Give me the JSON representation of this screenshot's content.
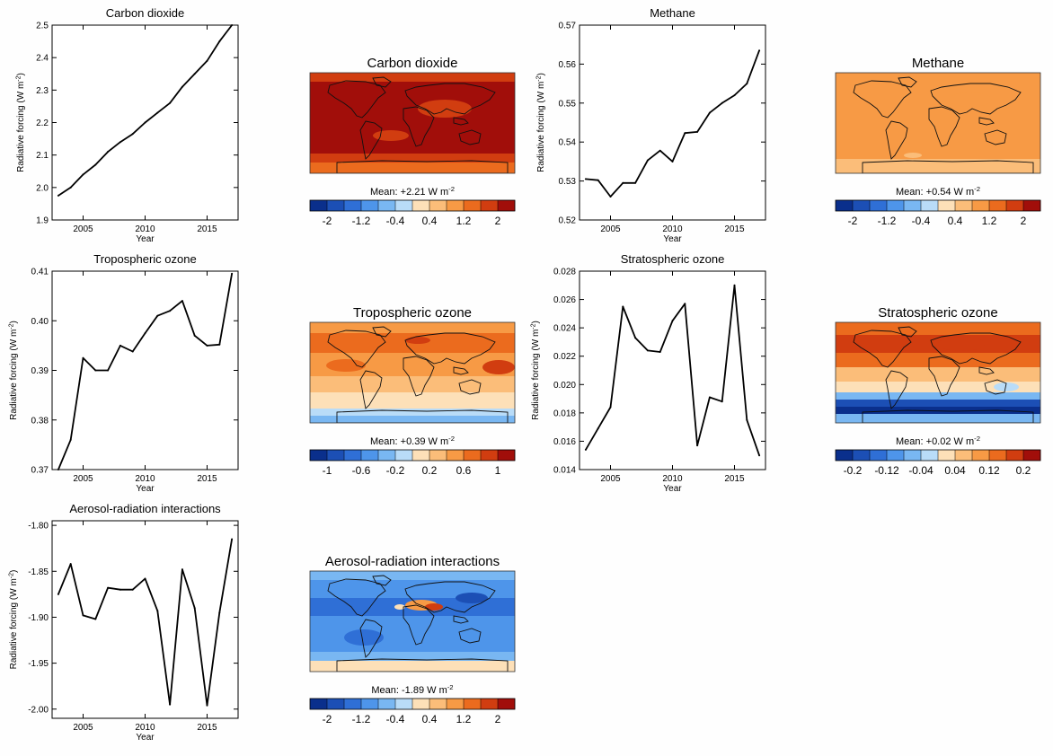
{
  "chart_data": [
    {
      "type": "line",
      "title": "Carbon dioxide",
      "xlabel": "Year",
      "ylabel": "Radiative forcing (W m",
      "ylabel_sup": "-2",
      "ylabel_close": ")",
      "xlim": [
        2002.5,
        2017.5
      ],
      "ylim": [
        1.9,
        2.5
      ],
      "xticks": [
        2005,
        2010,
        2015
      ],
      "yticks": [
        1.9,
        2.0,
        2.1,
        2.2,
        2.3,
        2.4,
        2.5
      ],
      "ytick_labels": [
        "1.9",
        "2.0",
        "2.1",
        "2.2",
        "2.3",
        "2.4",
        "2.5"
      ],
      "x": [
        2003,
        2004,
        2005,
        2006,
        2007,
        2008,
        2009,
        2010,
        2011,
        2012,
        2013,
        2014,
        2015,
        2016,
        2017
      ],
      "values": [
        1.975,
        2.0,
        2.04,
        2.07,
        2.11,
        2.14,
        2.165,
        2.2,
        2.23,
        2.26,
        2.31,
        2.35,
        2.39,
        2.45,
        2.5
      ]
    },
    {
      "type": "line",
      "title": "Methane",
      "xlabel": "Year",
      "ylabel": "Radiative forcing (W m",
      "ylabel_sup": "-2",
      "ylabel_close": ")",
      "xlim": [
        2002.5,
        2017.5
      ],
      "ylim": [
        0.52,
        0.57
      ],
      "xticks": [
        2005,
        2010,
        2015
      ],
      "yticks": [
        0.52,
        0.53,
        0.54,
        0.55,
        0.56,
        0.57
      ],
      "ytick_labels": [
        "0.52",
        "0.53",
        "0.54",
        "0.55",
        "0.56",
        "0.57"
      ],
      "x": [
        2003,
        2004,
        2005,
        2006,
        2007,
        2008,
        2009,
        2010,
        2011,
        2012,
        2013,
        2014,
        2015,
        2016,
        2017
      ],
      "values": [
        0.5305,
        0.5302,
        0.526,
        0.5295,
        0.5295,
        0.5353,
        0.5378,
        0.535,
        0.5423,
        0.5426,
        0.5475,
        0.55,
        0.552,
        0.555,
        0.5635
      ]
    },
    {
      "type": "line",
      "title": "Tropospheric ozone",
      "xlabel": "Year",
      "ylabel": "Radiative forcing (W m",
      "ylabel_sup": "-2",
      "ylabel_close": ")",
      "xlim": [
        2002.5,
        2017.5
      ],
      "ylim": [
        0.37,
        0.41
      ],
      "xticks": [
        2005,
        2010,
        2015
      ],
      "yticks": [
        0.37,
        0.38,
        0.39,
        0.4,
        0.41
      ],
      "ytick_labels": [
        "0.37",
        "0.38",
        "0.39",
        "0.40",
        "0.41"
      ],
      "x": [
        2003,
        2004,
        2005,
        2006,
        2007,
        2008,
        2009,
        2010,
        2011,
        2012,
        2013,
        2014,
        2015,
        2016,
        2017
      ],
      "values": [
        0.37,
        0.376,
        0.3925,
        0.39,
        0.39,
        0.395,
        0.3938,
        0.3975,
        0.401,
        0.402,
        0.404,
        0.397,
        0.395,
        0.3952,
        0.4095
      ]
    },
    {
      "type": "line",
      "title": "Stratospheric ozone",
      "xlabel": "Year",
      "ylabel": "Radiative forcing (W m",
      "ylabel_sup": "-2",
      "ylabel_close": ")",
      "xlim": [
        2002.5,
        2017.5
      ],
      "ylim": [
        0.014,
        0.028
      ],
      "xticks": [
        2005,
        2010,
        2015
      ],
      "yticks": [
        0.014,
        0.016,
        0.018,
        0.02,
        0.022,
        0.024,
        0.026,
        0.028
      ],
      "ytick_labels": [
        "0.014",
        "0.016",
        "0.018",
        "0.020",
        "0.022",
        "0.024",
        "0.026",
        "0.028"
      ],
      "x": [
        2003,
        2004,
        2005,
        2006,
        2007,
        2008,
        2009,
        2010,
        2011,
        2012,
        2013,
        2014,
        2015,
        2016,
        2017
      ],
      "values": [
        0.0154,
        0.0169,
        0.0184,
        0.0255,
        0.0233,
        0.0224,
        0.0223,
        0.0245,
        0.0257,
        0.0157,
        0.0191,
        0.0188,
        0.027,
        0.0175,
        0.015
      ]
    },
    {
      "type": "line",
      "title": "Aerosol-radiation interactions",
      "xlabel": "Year",
      "ylabel": "Radiative forcing (W m",
      "ylabel_sup": "-2",
      "ylabel_close": ")",
      "xlim": [
        2002.5,
        2017.5
      ],
      "ylim": [
        -2.01,
        -1.795
      ],
      "xticks": [
        2005,
        2010,
        2015
      ],
      "yticks": [
        -2.0,
        -1.95,
        -1.9,
        -1.85,
        -1.8
      ],
      "ytick_labels": [
        "-2.00",
        "-1.95",
        "-1.90",
        "-1.85",
        "-1.80"
      ],
      "x": [
        2003,
        2004,
        2005,
        2006,
        2007,
        2008,
        2009,
        2010,
        2011,
        2012,
        2013,
        2014,
        2015,
        2016,
        2017
      ],
      "values": [
        -1.875,
        -1.842,
        -1.898,
        -1.902,
        -1.868,
        -1.87,
        -1.87,
        -1.858,
        -1.893,
        -1.995,
        -1.848,
        -1.89,
        -1.996,
        -1.895,
        -1.815
      ]
    },
    {
      "type": "heatmap",
      "title": "Carbon dioxide",
      "mean_label": "Mean: +2.21 W m",
      "mean_sup": "-2",
      "colorbar_ticks": [
        "-2",
        "-1.2",
        "-0.4",
        "0.4",
        "1.2",
        "2"
      ],
      "style": "co2"
    },
    {
      "type": "heatmap",
      "title": "Methane",
      "mean_label": "Mean: +0.54 W m",
      "mean_sup": "-2",
      "colorbar_ticks": [
        "-2",
        "-1.2",
        "-0.4",
        "0.4",
        "1.2",
        "2"
      ],
      "style": "ch4"
    },
    {
      "type": "heatmap",
      "title": "Tropospheric ozone",
      "mean_label": "Mean: +0.39 W m",
      "mean_sup": "-2",
      "colorbar_ticks": [
        "-1",
        "-0.6",
        "-0.2",
        "0.2",
        "0.6",
        "1"
      ],
      "style": "trop"
    },
    {
      "type": "heatmap",
      "title": "Stratospheric ozone",
      "mean_label": "Mean: +0.02 W m",
      "mean_sup": "-2",
      "colorbar_ticks": [
        "-0.2",
        "-0.12",
        "-0.04",
        "0.04",
        "0.12",
        "0.2"
      ],
      "style": "strat"
    },
    {
      "type": "heatmap",
      "title": "Aerosol-radiation interactions",
      "mean_label": "Mean: -1.89 W m",
      "mean_sup": "-2",
      "colorbar_ticks": [
        "-2",
        "-1.2",
        "-0.4",
        "0.4",
        "1.2",
        "2"
      ],
      "style": "aer"
    }
  ],
  "colorbar_colors": [
    "#0a2f8c",
    "#1c4fb5",
    "#2f6fd6",
    "#4e95ea",
    "#79b7f2",
    "#b9dcf8",
    "#fde0b8",
    "#fbbd79",
    "#f79a45",
    "#eb6b1e",
    "#d13d10",
    "#a10e0a"
  ]
}
